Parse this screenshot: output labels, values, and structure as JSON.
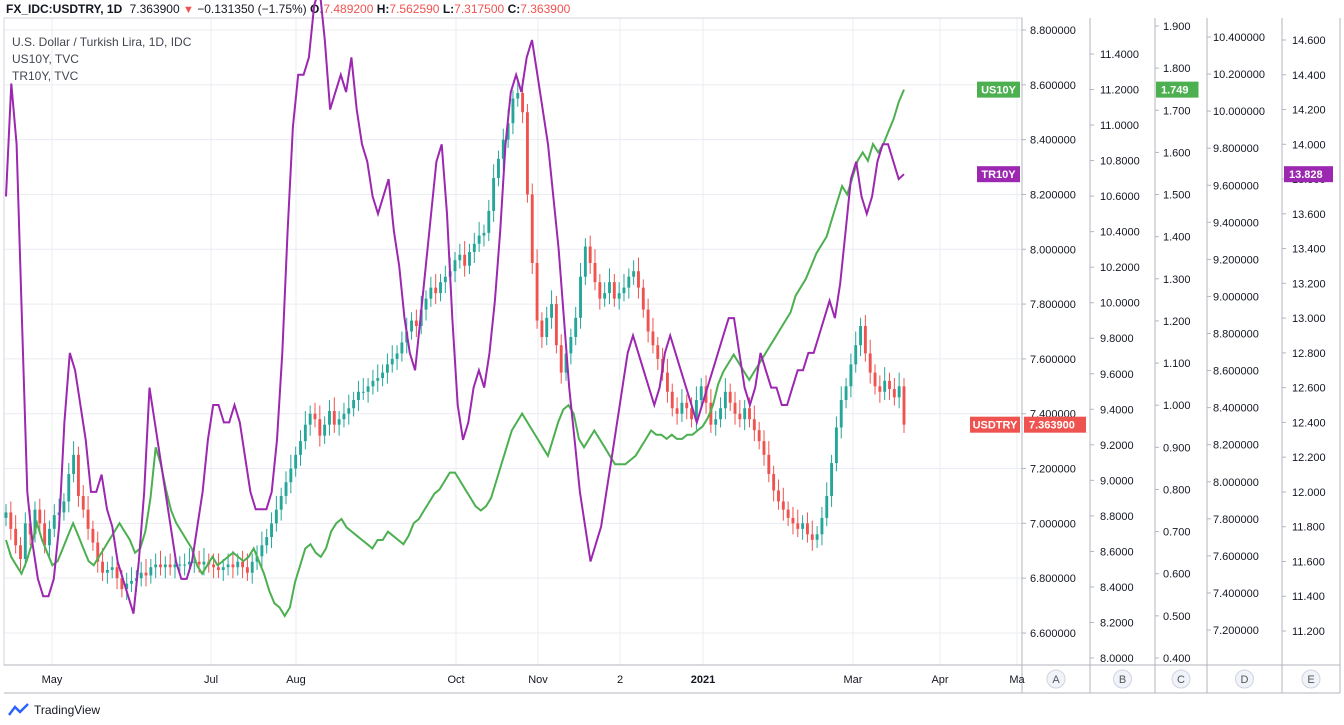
{
  "header": {
    "symbol": "FX_IDC:USDTRY, 1D",
    "last": "7.363900",
    "arrow": "▼",
    "change": "−0.131350 (−1.75%)",
    "o_label": "O:",
    "o_value": "7.489200",
    "h_label": "H:",
    "h_value": "7.562590",
    "l_label": "L:",
    "l_value": "7.317500",
    "c_label": "C:",
    "c_value": "7.363900"
  },
  "legend": [
    "U.S. Dollar / Turkish Lira, 1D, IDC",
    "US10Y, TVC",
    "TR10Y, TVC"
  ],
  "colors": {
    "up": "#26a69a",
    "down": "#ef5350",
    "us10y": "#4caf50",
    "tr10y": "#9c27b0",
    "usd_badge": "#ef5350",
    "grid": "#e9ecf2"
  },
  "brand": "TradingView",
  "axis_letters": [
    "A",
    "B",
    "C",
    "D",
    "E"
  ],
  "chart_data": {
    "type": "line",
    "title": "U.S. Dollar / Turkish Lira, 1D, IDC",
    "grid": true,
    "x_ticks": [
      "May",
      "Jul",
      "Aug",
      "Oct",
      "Nov",
      "2",
      "2021",
      "Mar",
      "Apr",
      "Ma"
    ],
    "axes": [
      {
        "id": "A",
        "series": "USDTRY",
        "ticks": [
          "8.800000",
          "8.600000",
          "8.400000",
          "8.200000",
          "8.000000",
          "7.800000",
          "7.600000",
          "7.400000",
          "7.200000",
          "7.000000",
          "6.800000",
          "6.600000"
        ]
      },
      {
        "id": "B",
        "series": "US10Y",
        "ticks": [
          "11.4000",
          "11.2000",
          "11.0000",
          "10.8000",
          "10.6000",
          "10.4000",
          "10.2000",
          "10.0000",
          "9.8000",
          "9.6000",
          "9.4000",
          "9.2000",
          "9.0000",
          "8.8000",
          "8.6000",
          "8.4000",
          "8.2000",
          "8.0000"
        ]
      },
      {
        "id": "C",
        "series": "US10Y",
        "ticks": [
          "1.900",
          "1.800",
          "1.700",
          "1.600",
          "1.500",
          "1.400",
          "1.300",
          "1.200",
          "1.100",
          "1.000",
          "0.900",
          "0.800",
          "0.700",
          "0.600",
          "0.500",
          "0.400"
        ]
      },
      {
        "id": "D",
        "series": "TR10Y",
        "ticks": [
          "10.400000",
          "10.200000",
          "10.000000",
          "9.800000",
          "9.600000",
          "9.400000",
          "9.200000",
          "9.000000",
          "8.800000",
          "8.600000",
          "8.400000",
          "8.200000",
          "8.000000",
          "7.800000",
          "7.600000",
          "7.400000",
          "7.200000"
        ]
      },
      {
        "id": "E",
        "series": "TR10Y",
        "ticks": [
          "14.600",
          "14.400",
          "14.200",
          "14.000",
          "13.800",
          "13.600",
          "13.400",
          "13.200",
          "13.000",
          "12.800",
          "12.600",
          "12.400",
          "12.200",
          "12.000",
          "11.800",
          "11.600",
          "11.400",
          "11.200"
        ]
      }
    ],
    "badges": [
      {
        "label": "US10Y",
        "value": "1.749",
        "series": "US10Y"
      },
      {
        "label": "TR10Y",
        "value": "13.828",
        "series": "TR10Y"
      },
      {
        "label": "USDTRY",
        "value": "7.363900",
        "series": "USDTRY"
      }
    ],
    "series": [
      {
        "name": "USDTRY",
        "type": "candlestick",
        "axis": "A",
        "close": [
          7.04,
          6.98,
          6.92,
          6.87,
          7.0,
          6.96,
          7.05,
          7.0,
          6.92,
          6.98,
          7.03,
          7.04,
          7.08,
          7.18,
          7.25,
          7.1,
          7.05,
          6.98,
          6.93,
          6.86,
          6.82,
          6.83,
          6.84,
          6.8,
          6.76,
          6.78,
          6.79,
          6.8,
          6.82,
          6.81,
          6.84,
          6.85,
          6.84,
          6.85,
          6.84,
          6.85,
          6.85,
          6.85,
          6.86,
          6.86,
          6.85,
          6.86,
          6.85,
          6.84,
          6.83,
          6.84,
          6.85,
          6.84,
          6.86,
          6.84,
          6.82,
          6.86,
          6.88,
          6.92,
          6.95,
          7.0,
          7.05,
          7.1,
          7.15,
          7.2,
          7.25,
          7.3,
          7.36,
          7.4,
          7.38,
          7.32,
          7.36,
          7.41,
          7.36,
          7.38,
          7.4,
          7.42,
          7.45,
          7.48,
          7.48,
          7.5,
          7.52,
          7.53,
          7.55,
          7.58,
          7.6,
          7.62,
          7.66,
          7.7,
          7.74,
          7.72,
          7.78,
          7.82,
          7.86,
          7.84,
          7.88,
          7.9,
          7.92,
          7.96,
          7.98,
          7.94,
          7.99,
          8.02,
          8.05,
          8.06,
          8.14,
          8.26,
          8.33,
          8.4,
          8.46,
          8.55,
          8.57,
          8.5,
          8.2,
          7.95,
          7.74,
          7.68,
          7.75,
          7.8,
          7.65,
          7.55,
          7.62,
          7.68,
          7.75,
          7.9,
          8.01,
          7.95,
          7.88,
          7.82,
          7.84,
          7.88,
          7.82,
          7.84,
          7.86,
          7.9,
          7.92,
          7.86,
          7.78,
          7.7,
          7.65,
          7.6,
          7.55,
          7.48,
          7.42,
          7.4,
          7.44,
          7.42,
          7.38,
          7.45,
          7.5,
          7.44,
          7.36,
          7.38,
          7.42,
          7.48,
          7.44,
          7.4,
          7.38,
          7.42,
          7.38,
          7.34,
          7.3,
          7.25,
          7.18,
          7.12,
          7.08,
          7.05,
          7.02,
          7.0,
          6.98,
          7.0,
          6.96,
          6.94,
          6.96,
          7.02,
          7.1,
          7.22,
          7.35,
          7.45,
          7.5,
          7.58,
          7.65,
          7.72,
          7.62,
          7.55,
          7.5,
          7.48,
          7.52,
          7.49,
          7.46,
          7.5,
          7.36
        ]
      },
      {
        "name": "US10Y",
        "type": "line",
        "axis": "C",
        "values": [
          0.68,
          0.64,
          0.62,
          0.6,
          0.63,
          0.67,
          0.72,
          0.68,
          0.65,
          0.62,
          0.63,
          0.66,
          0.69,
          0.72,
          0.69,
          0.66,
          0.63,
          0.62,
          0.64,
          0.66,
          0.68,
          0.7,
          0.72,
          0.7,
          0.68,
          0.65,
          0.66,
          0.7,
          0.78,
          0.9,
          0.86,
          0.8,
          0.75,
          0.72,
          0.7,
          0.68,
          0.66,
          0.62,
          0.6,
          0.62,
          0.64,
          0.62,
          0.63,
          0.64,
          0.65,
          0.64,
          0.63,
          0.64,
          0.66,
          0.63,
          0.6,
          0.56,
          0.53,
          0.52,
          0.5,
          0.52,
          0.58,
          0.62,
          0.66,
          0.67,
          0.65,
          0.64,
          0.66,
          0.7,
          0.72,
          0.73,
          0.71,
          0.7,
          0.69,
          0.68,
          0.67,
          0.66,
          0.68,
          0.68,
          0.7,
          0.69,
          0.68,
          0.67,
          0.69,
          0.72,
          0.73,
          0.75,
          0.77,
          0.79,
          0.8,
          0.82,
          0.84,
          0.84,
          0.82,
          0.8,
          0.78,
          0.76,
          0.75,
          0.76,
          0.78,
          0.82,
          0.86,
          0.9,
          0.94,
          0.96,
          0.98,
          0.96,
          0.94,
          0.92,
          0.9,
          0.88,
          0.92,
          0.96,
          0.99,
          1.0,
          0.98,
          0.92,
          0.9,
          0.92,
          0.94,
          0.92,
          0.9,
          0.88,
          0.86,
          0.86,
          0.86,
          0.87,
          0.88,
          0.9,
          0.92,
          0.94,
          0.93,
          0.93,
          0.92,
          0.93,
          0.92,
          0.92,
          0.93,
          0.93,
          0.94,
          0.95,
          0.97,
          1.0,
          1.05,
          1.08,
          1.1,
          1.12,
          1.1,
          1.08,
          1.06,
          1.08,
          1.1,
          1.12,
          1.14,
          1.16,
          1.18,
          1.2,
          1.22,
          1.26,
          1.28,
          1.3,
          1.33,
          1.36,
          1.38,
          1.4,
          1.44,
          1.48,
          1.52,
          1.5,
          1.54,
          1.58,
          1.6,
          1.58,
          1.62,
          1.6,
          1.62,
          1.65,
          1.68,
          1.72,
          1.749
        ]
      },
      {
        "name": "TR10Y",
        "type": "line",
        "axis": "E",
        "values": [
          13.7,
          14.35,
          14.0,
          13.0,
          12.0,
          11.7,
          11.5,
          11.4,
          11.4,
          11.5,
          11.8,
          12.4,
          12.8,
          12.7,
          12.5,
          12.3,
          12.0,
          12.0,
          12.1,
          11.9,
          11.8,
          11.6,
          11.5,
          11.4,
          11.3,
          11.6,
          12.0,
          12.6,
          12.4,
          12.2,
          12.0,
          11.8,
          11.6,
          11.5,
          11.5,
          11.6,
          11.8,
          12.0,
          12.3,
          12.5,
          12.5,
          12.4,
          12.4,
          12.5,
          12.4,
          12.2,
          12.0,
          11.9,
          11.9,
          11.9,
          12.0,
          12.3,
          12.8,
          13.5,
          14.1,
          14.4,
          14.4,
          14.5,
          14.8,
          14.9,
          14.6,
          14.2,
          14.3,
          14.4,
          14.3,
          14.5,
          14.2,
          14.0,
          13.9,
          13.7,
          13.6,
          13.7,
          13.8,
          13.5,
          13.3,
          13.0,
          12.8,
          12.7,
          13.0,
          13.3,
          13.6,
          13.9,
          14.0,
          13.6,
          13.0,
          12.5,
          12.3,
          12.4,
          12.6,
          12.7,
          12.6,
          12.8,
          13.1,
          13.5,
          14.0,
          14.3,
          14.4,
          14.3,
          14.5,
          14.6,
          14.4,
          14.2,
          14.0,
          13.7,
          13.4,
          13.0,
          12.6,
          12.3,
          12.0,
          11.8,
          11.6,
          11.7,
          11.8,
          12.0,
          12.2,
          12.4,
          12.6,
          12.8,
          12.9,
          12.8,
          12.7,
          12.6,
          12.5,
          12.6,
          12.8,
          12.9,
          12.8,
          12.7,
          12.6,
          12.5,
          12.4,
          12.5,
          12.6,
          12.7,
          12.8,
          12.9,
          13.0,
          13.0,
          12.8,
          12.6,
          12.5,
          12.6,
          12.8,
          12.7,
          12.6,
          12.6,
          12.5,
          12.5,
          12.6,
          12.7,
          12.7,
          12.8,
          12.8,
          12.9,
          13.0,
          13.1,
          13.0,
          13.2,
          13.5,
          13.8,
          13.9,
          13.7,
          13.6,
          13.7,
          13.9,
          14.0,
          14.0,
          13.9,
          13.8,
          13.828
        ]
      }
    ]
  }
}
